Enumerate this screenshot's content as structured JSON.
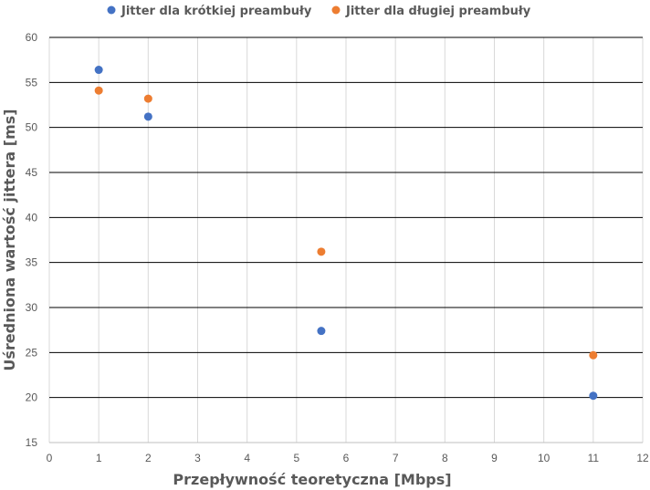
{
  "chart_data": {
    "type": "scatter",
    "title": "",
    "xlabel": "Przepływność teoretyczna [Mbps]",
    "ylabel": "Uśredniona wartość jittera [ms]",
    "xlim": [
      0,
      12
    ],
    "ylim": [
      15,
      60
    ],
    "x_ticks": [
      0,
      1,
      2,
      3,
      4,
      5,
      6,
      7,
      8,
      9,
      10,
      11,
      12
    ],
    "y_ticks": [
      15,
      20,
      25,
      30,
      35,
      40,
      45,
      50,
      55,
      60
    ],
    "grid": true,
    "legend_position": "top",
    "series": [
      {
        "name": "Jitter dla krótkiej preambuły",
        "color": "#4472C4",
        "x": [
          1,
          2,
          5.5,
          11
        ],
        "y": [
          56.4,
          51.2,
          27.4,
          20.2
        ]
      },
      {
        "name": "Jitter dla długiej preambuły",
        "color": "#ED7D31",
        "x": [
          1,
          2,
          5.5,
          11
        ],
        "y": [
          54.1,
          53.2,
          36.2,
          24.7
        ]
      }
    ]
  }
}
